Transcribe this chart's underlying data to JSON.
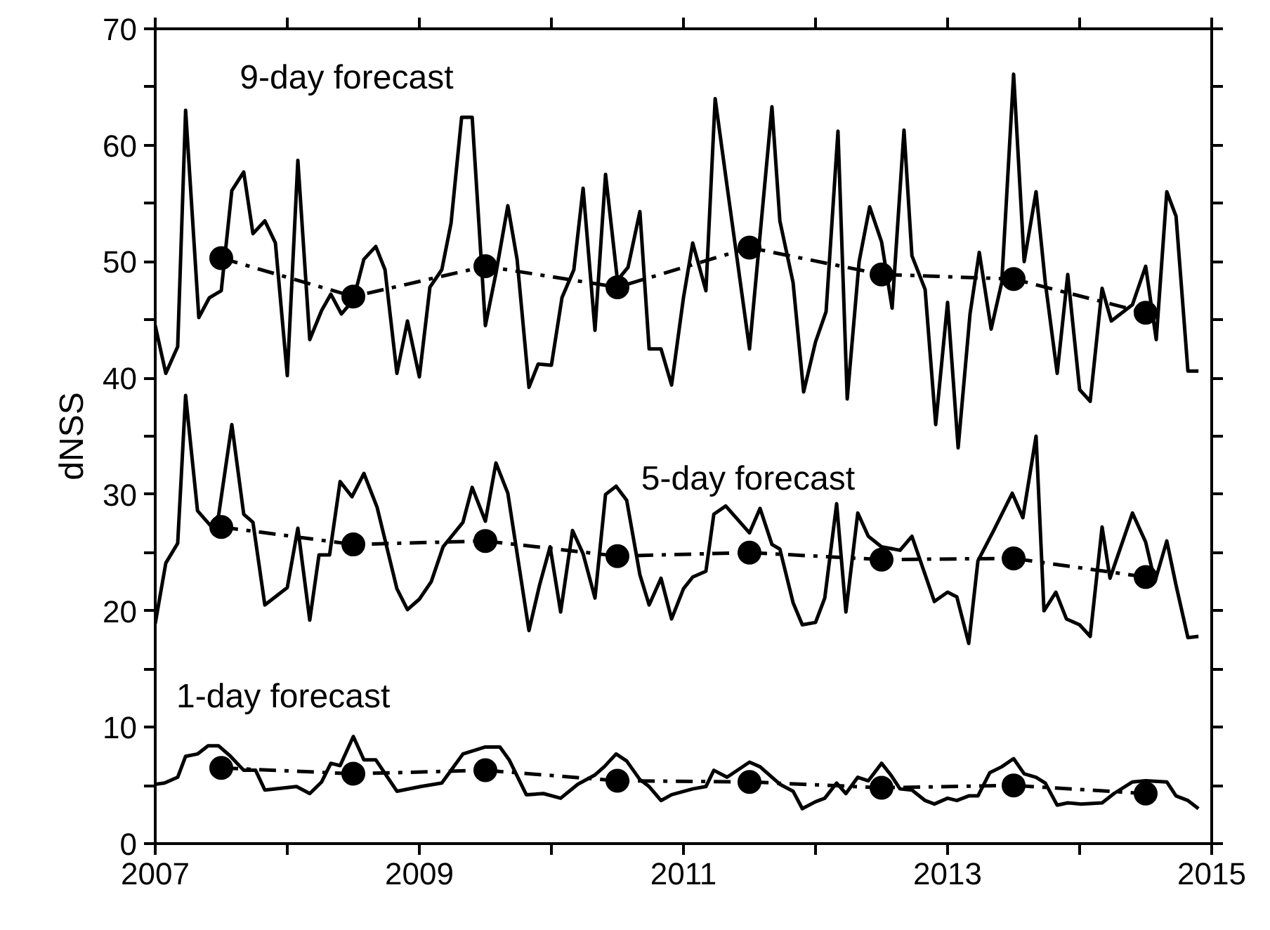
{
  "chart_data": {
    "type": "line",
    "ylabel": "dNSS",
    "xlim": [
      2007,
      2015
    ],
    "ylim": [
      0,
      70
    ],
    "xticks": [
      2007,
      {
        "value": 2008,
        "label": null
      },
      2009,
      {
        "value": 2010,
        "label": null
      },
      2011,
      {
        "value": 2012,
        "label": null
      },
      2013,
      {
        "value": 2014,
        "label": null
      },
      2015
    ],
    "yticks": [
      0,
      {
        "value": 5,
        "label": null
      },
      10,
      {
        "value": 15,
        "label": null
      },
      20,
      {
        "value": 25,
        "label": null
      },
      30,
      {
        "value": 35,
        "label": null
      },
      40,
      {
        "value": 45,
        "label": null
      },
      50,
      {
        "value": 55,
        "label": null
      },
      60,
      {
        "value": 65,
        "label": null
      },
      70
    ],
    "grid": false,
    "annotations": [
      "9-day forecast",
      "5-day forecast",
      "1-day forecast"
    ],
    "series": [
      {
        "color": "#000000",
        "line_style": "solid",
        "marker": "none",
        "x": [
          2007.0,
          2007.08,
          2007.17,
          2007.23,
          2007.33,
          2007.41,
          2007.5,
          2007.58,
          2007.67,
          2007.74,
          2007.83,
          2007.91,
          2008.0,
          2008.08,
          2008.17,
          2008.26,
          2008.33,
          2008.41,
          2008.5,
          2008.58,
          2008.67,
          2008.74,
          2008.83,
          2008.91,
          2009.0,
          2009.08,
          2009.17,
          2009.24,
          2009.32,
          2009.4,
          2009.5,
          2009.58,
          2009.67,
          2009.74,
          2009.83,
          2009.9,
          2010.0,
          2010.08,
          2010.17,
          2010.24,
          2010.33,
          2010.41,
          2010.5,
          2010.58,
          2010.67,
          2010.74,
          2010.83,
          2010.91,
          2011.0,
          2011.07,
          2011.17,
          2011.24,
          2011.33,
          2011.5,
          2011.67,
          2011.73,
          2011.83,
          2011.91,
          2012.0,
          2012.08,
          2012.17,
          2012.24,
          2012.33,
          2012.41,
          2012.5,
          2012.58,
          2012.67,
          2012.73,
          2012.83,
          2012.91,
          2013.0,
          2013.08,
          2013.17,
          2013.24,
          2013.33,
          2013.41,
          2013.5,
          2013.58,
          2013.67,
          2013.74,
          2013.83,
          2013.91,
          2014.0,
          2014.08,
          2014.17,
          2014.24,
          2014.4,
          2014.5,
          2014.58,
          2014.66,
          2014.73,
          2014.82,
          2014.9
        ],
        "values": [
          44.5,
          40.4,
          42.7,
          63.0,
          45.2,
          46.9,
          47.5,
          56.1,
          57.7,
          52.4,
          53.5,
          51.6,
          40.2,
          58.7,
          43.3,
          45.8,
          47.2,
          45.5,
          46.7,
          50.2,
          51.3,
          49.3,
          40.4,
          44.9,
          40.1,
          47.8,
          49.3,
          53.3,
          62.4,
          62.4,
          44.5,
          49.0,
          54.8,
          50.2,
          39.2,
          41.2,
          41.1,
          46.9,
          49.3,
          56.3,
          44.1,
          57.5,
          48.4,
          49.5,
          54.3,
          42.5,
          42.5,
          39.4,
          46.9,
          51.6,
          47.5,
          64.0,
          56.5,
          42.5,
          63.3,
          53.5,
          48.2,
          38.8,
          43.1,
          45.7,
          61.2,
          38.2,
          50.0,
          54.7,
          51.7,
          46.0,
          61.3,
          50.5,
          47.6,
          36.0,
          46.5,
          34.0,
          45.5,
          50.8,
          44.2,
          48.2,
          66.1,
          50.0,
          56.0,
          48.2,
          40.4,
          48.9,
          39.0,
          38.0,
          47.7,
          44.9,
          46.3,
          49.6,
          43.3,
          56.0,
          53.9,
          40.6,
          40.6
        ]
      },
      {
        "color": "#000000",
        "line_style": "dashdot",
        "marker": "circle",
        "x": [
          2007.5,
          2008.5,
          2009.5,
          2010.5,
          2011.5,
          2012.5,
          2013.5,
          2014.5
        ],
        "values": [
          50.3,
          47.0,
          49.6,
          47.8,
          51.2,
          48.9,
          48.5,
          45.6
        ]
      },
      {
        "color": "#000000",
        "line_style": "solid",
        "marker": "none",
        "x": [
          2007.0,
          2007.08,
          2007.17,
          2007.23,
          2007.32,
          2007.42,
          2007.48,
          2007.58,
          2007.67,
          2007.74,
          2007.83,
          2008.0,
          2008.08,
          2008.17,
          2008.24,
          2008.32,
          2008.4,
          2008.49,
          2008.58,
          2008.68,
          2008.83,
          2008.91,
          2009.0,
          2009.09,
          2009.18,
          2009.33,
          2009.4,
          2009.5,
          2009.58,
          2009.67,
          2009.83,
          2009.91,
          2009.99,
          2010.07,
          2010.16,
          2010.24,
          2010.33,
          2010.41,
          2010.49,
          2010.57,
          2010.67,
          2010.74,
          2010.83,
          2010.91,
          2011.0,
          2011.07,
          2011.17,
          2011.23,
          2011.32,
          2011.5,
          2011.58,
          2011.67,
          2011.73,
          2011.83,
          2011.9,
          2012.0,
          2012.07,
          2012.16,
          2012.23,
          2012.32,
          2012.4,
          2012.5,
          2012.64,
          2012.73,
          2012.9,
          2013.0,
          2013.07,
          2013.16,
          2013.23,
          2013.34,
          2013.49,
          2013.57,
          2013.67,
          2013.73,
          2013.82,
          2013.9,
          2014.0,
          2014.08,
          2014.17,
          2014.23,
          2014.4,
          2014.5,
          2014.57,
          2014.66,
          2014.73,
          2014.82,
          2014.9
        ],
        "values": [
          18.9,
          24.1,
          25.8,
          38.5,
          28.6,
          27.3,
          28.2,
          36.0,
          28.3,
          27.6,
          20.5,
          22.0,
          27.1,
          19.2,
          24.8,
          24.8,
          31.1,
          29.8,
          31.8,
          28.9,
          21.9,
          20.1,
          21.0,
          22.5,
          25.5,
          27.6,
          30.6,
          27.7,
          32.7,
          30.1,
          18.3,
          22.2,
          25.5,
          19.9,
          26.9,
          24.9,
          21.1,
          30.0,
          30.7,
          29.5,
          23.1,
          20.5,
          22.8,
          19.3,
          21.9,
          22.9,
          23.4,
          28.3,
          29.0,
          26.7,
          28.8,
          25.7,
          25.3,
          20.7,
          18.8,
          19.0,
          21.1,
          29.2,
          19.9,
          28.4,
          26.4,
          25.5,
          25.2,
          26.4,
          20.8,
          21.6,
          21.2,
          17.2,
          24.3,
          26.7,
          30.1,
          28.0,
          35.0,
          20.0,
          21.6,
          19.3,
          18.8,
          17.8,
          27.2,
          22.8,
          28.4,
          25.9,
          22.5,
          26.0,
          22.2,
          17.7,
          17.8
        ]
      },
      {
        "color": "#000000",
        "line_style": "dashdot",
        "marker": "circle",
        "x": [
          2007.5,
          2008.5,
          2009.5,
          2010.5,
          2011.5,
          2012.5,
          2013.5,
          2014.5
        ],
        "values": [
          27.2,
          25.7,
          26.0,
          24.7,
          25.0,
          24.4,
          24.5,
          22.9
        ]
      },
      {
        "color": "#000000",
        "line_style": "solid",
        "marker": "none",
        "x": [
          2007.0,
          2007.07,
          2007.17,
          2007.23,
          2007.32,
          2007.4,
          2007.48,
          2007.57,
          2007.67,
          2007.76,
          2007.83,
          2008.07,
          2008.17,
          2008.26,
          2008.33,
          2008.4,
          2008.5,
          2008.58,
          2008.67,
          2008.83,
          2009.01,
          2009.17,
          2009.33,
          2009.5,
          2009.61,
          2009.68,
          2009.81,
          2009.94,
          2010.07,
          2010.2,
          2010.33,
          2010.4,
          2010.49,
          2010.57,
          2010.67,
          2010.74,
          2010.83,
          2010.91,
          2011.07,
          2011.17,
          2011.23,
          2011.33,
          2011.5,
          2011.58,
          2011.73,
          2011.83,
          2011.9,
          2012.0,
          2012.07,
          2012.16,
          2012.23,
          2012.32,
          2012.4,
          2012.5,
          2012.57,
          2012.64,
          2012.73,
          2012.83,
          2012.9,
          2013.0,
          2013.07,
          2013.16,
          2013.23,
          2013.32,
          2013.41,
          2013.5,
          2013.58,
          2013.67,
          2013.74,
          2013.83,
          2013.91,
          2014.01,
          2014.17,
          2014.26,
          2014.4,
          2014.5,
          2014.66,
          2014.73,
          2014.82,
          2014.9
        ],
        "values": [
          5.1,
          5.2,
          5.7,
          7.5,
          7.7,
          8.4,
          8.4,
          7.5,
          6.3,
          6.3,
          4.6,
          4.9,
          4.3,
          5.3,
          6.9,
          6.7,
          9.2,
          7.2,
          7.2,
          4.5,
          4.9,
          5.2,
          7.7,
          8.3,
          8.3,
          7.2,
          4.2,
          4.3,
          3.9,
          5.1,
          5.9,
          6.6,
          7.7,
          7.1,
          5.5,
          4.9,
          3.7,
          4.2,
          4.7,
          4.9,
          6.3,
          5.7,
          7.0,
          6.6,
          5.1,
          4.5,
          3.0,
          3.6,
          3.9,
          5.2,
          4.3,
          5.7,
          5.4,
          6.9,
          5.9,
          4.7,
          4.6,
          3.7,
          3.4,
          3.9,
          3.7,
          4.1,
          4.1,
          6.1,
          6.6,
          7.3,
          6.0,
          5.7,
          5.2,
          3.3,
          3.5,
          3.4,
          3.5,
          4.3,
          5.3,
          5.4,
          5.3,
          4.1,
          3.7,
          3.0
        ]
      },
      {
        "color": "#000000",
        "line_style": "dashdot",
        "marker": "circle",
        "x": [
          2007.5,
          2008.5,
          2009.5,
          2010.5,
          2011.5,
          2012.5,
          2013.5,
          2014.5
        ],
        "values": [
          6.5,
          6.0,
          6.3,
          5.4,
          5.3,
          4.8,
          5.0,
          4.3
        ]
      }
    ]
  }
}
